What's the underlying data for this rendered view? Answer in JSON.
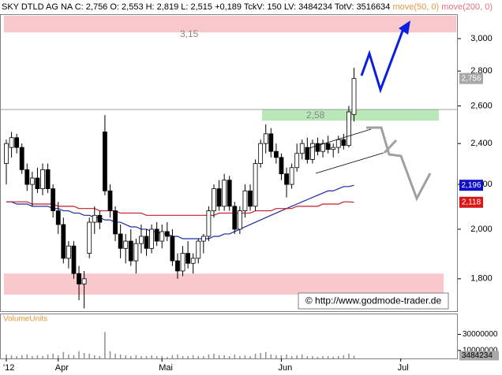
{
  "chart_data": {
    "type": "candlestick",
    "title": "SKY DTLD AG NA C: 2,756 O: 2,553 H: 2,819 L: 2,515 +0,189 TckV: 150 LV: 3484234 TotV: 3516634",
    "log_y": true,
    "xlim": [
      0,
      87
    ],
    "xticks": [
      {
        "value": 0,
        "label": "'12"
      },
      {
        "value": 10,
        "label": "Apr"
      },
      {
        "value": 30,
        "label": "Mai"
      },
      {
        "value": 53,
        "label": "Jun"
      },
      {
        "value": 76,
        "label": "Jul"
      }
    ],
    "ylim": [
      1.68,
      3.16
    ],
    "yticks": [
      {
        "value": 1.8,
        "label": "1,800"
      },
      {
        "value": 2.0,
        "label": "2,000"
      },
      {
        "value": 2.2,
        "label": "2,200"
      },
      {
        "value": 2.4,
        "label": "2,400"
      },
      {
        "value": 2.6,
        "label": "2,600"
      },
      {
        "value": 2.8,
        "label": "2,800"
      },
      {
        "value": 3.0,
        "label": "3,000"
      }
    ],
    "candle_color": "#000000",
    "open": [
      2.3,
      2.38,
      2.43,
      2.38,
      2.27,
      2.2,
      2.23,
      2.18,
      2.27,
      2.18,
      2.08,
      2.02,
      1.88,
      1.93,
      1.82,
      1.78,
      1.9,
      2.03,
      2.06,
      2.46,
      2.17,
      2.08,
      1.98,
      1.92,
      1.95,
      1.87,
      1.94,
      1.97,
      1.92,
      2.0,
      1.95,
      1.99,
      1.97,
      1.87,
      1.83,
      1.9,
      1.86,
      1.88,
      1.95,
      1.97,
      2.08,
      2.18,
      2.1,
      2.22,
      2.1,
      2.0,
      2.08,
      2.17,
      2.1,
      2.3,
      2.4,
      2.45,
      2.36,
      2.33,
      2.25,
      2.2,
      2.28,
      2.35,
      2.38,
      2.32,
      2.4,
      2.36,
      2.4,
      2.37,
      2.38,
      2.42,
      2.39,
      2.553
    ],
    "high": [
      2.42,
      2.46,
      2.45,
      2.4,
      2.3,
      2.26,
      2.28,
      2.3,
      2.3,
      2.2,
      2.12,
      2.05,
      1.95,
      1.95,
      1.85,
      1.83,
      2.05,
      2.1,
      2.08,
      2.55,
      2.2,
      2.1,
      2.02,
      1.98,
      2.0,
      1.96,
      2.02,
      2.0,
      2.02,
      2.03,
      2.02,
      2.03,
      2.0,
      1.9,
      1.93,
      1.95,
      1.9,
      1.96,
      1.98,
      2.1,
      2.2,
      2.22,
      2.25,
      2.24,
      2.12,
      2.1,
      2.2,
      2.2,
      2.32,
      2.42,
      2.5,
      2.48,
      2.4,
      2.35,
      2.28,
      2.3,
      2.4,
      2.42,
      2.43,
      2.42,
      2.43,
      2.42,
      2.44,
      2.4,
      2.44,
      2.45,
      2.6,
      2.819
    ],
    "low": [
      2.2,
      2.33,
      2.35,
      2.25,
      2.17,
      2.1,
      2.16,
      2.15,
      2.16,
      2.05,
      1.98,
      1.86,
      1.84,
      1.8,
      1.72,
      1.69,
      1.88,
      1.98,
      2.0,
      2.15,
      2.05,
      1.95,
      1.88,
      1.86,
      1.85,
      1.82,
      1.9,
      1.89,
      1.9,
      1.93,
      1.92,
      1.95,
      1.85,
      1.8,
      1.81,
      1.84,
      1.82,
      1.86,
      1.9,
      1.95,
      2.05,
      2.08,
      2.08,
      2.08,
      1.98,
      1.98,
      2.05,
      2.08,
      2.08,
      2.28,
      2.35,
      2.33,
      2.3,
      2.22,
      2.14,
      2.18,
      2.26,
      2.32,
      2.3,
      2.3,
      2.34,
      2.33,
      2.35,
      2.33,
      2.35,
      2.37,
      2.38,
      2.515
    ],
    "close": [
      2.4,
      2.43,
      2.38,
      2.27,
      2.2,
      2.23,
      2.18,
      2.27,
      2.18,
      2.08,
      2.02,
      1.88,
      1.93,
      1.82,
      1.78,
      1.8,
      2.03,
      2.06,
      2.03,
      2.17,
      2.08,
      1.98,
      1.92,
      1.95,
      1.87,
      1.94,
      1.97,
      1.92,
      2.0,
      1.95,
      1.99,
      1.97,
      1.87,
      1.83,
      1.9,
      1.86,
      1.88,
      1.95,
      1.97,
      2.08,
      2.18,
      2.1,
      2.22,
      2.1,
      2.0,
      2.08,
      2.17,
      2.1,
      2.3,
      2.4,
      2.45,
      2.36,
      2.33,
      2.25,
      2.2,
      2.28,
      2.35,
      2.4,
      2.32,
      2.4,
      2.36,
      2.4,
      2.37,
      2.38,
      2.42,
      2.39,
      2.567,
      2.756
    ],
    "series": [
      {
        "name": "move(50, 0)",
        "color": "#1c2aa8",
        "label_color": "#e8963c",
        "values": [
          2.12,
          2.12,
          2.11,
          2.11,
          2.11,
          2.1,
          2.1,
          2.1,
          2.1,
          2.09,
          2.09,
          2.08,
          2.08,
          2.07,
          2.07,
          2.06,
          2.06,
          2.05,
          2.05,
          2.04,
          2.04,
          2.03,
          2.03,
          2.02,
          2.01,
          2.01,
          2.0,
          2.0,
          1.99,
          1.99,
          1.98,
          1.98,
          1.97,
          1.97,
          1.96,
          1.96,
          1.96,
          1.96,
          1.96,
          1.96,
          1.97,
          1.97,
          1.98,
          1.98,
          1.99,
          2.0,
          2.01,
          2.02,
          2.03,
          2.04,
          2.05,
          2.06,
          2.07,
          2.08,
          2.09,
          2.1,
          2.11,
          2.12,
          2.13,
          2.14,
          2.15,
          2.16,
          2.17,
          2.17,
          2.18,
          2.19,
          2.19,
          2.196
        ]
      },
      {
        "name": "move(200, 0)",
        "color": "#c41e24",
        "label_color": "#e87080",
        "values": [
          2.12,
          2.12,
          2.12,
          2.12,
          2.12,
          2.11,
          2.11,
          2.11,
          2.11,
          2.11,
          2.1,
          2.1,
          2.1,
          2.1,
          2.09,
          2.09,
          2.09,
          2.09,
          2.08,
          2.08,
          2.08,
          2.08,
          2.07,
          2.07,
          2.07,
          2.07,
          2.07,
          2.06,
          2.06,
          2.06,
          2.06,
          2.06,
          2.06,
          2.06,
          2.06,
          2.06,
          2.06,
          2.06,
          2.06,
          2.06,
          2.06,
          2.07,
          2.07,
          2.07,
          2.07,
          2.07,
          2.07,
          2.07,
          2.08,
          2.08,
          2.08,
          2.08,
          2.09,
          2.09,
          2.09,
          2.09,
          2.1,
          2.1,
          2.1,
          2.1,
          2.1,
          2.11,
          2.11,
          2.11,
          2.11,
          2.12,
          2.12,
          2.118
        ]
      }
    ],
    "price_tags": [
      {
        "value": 2.756,
        "label": "2,756",
        "color": "#a8a8a8"
      },
      {
        "value": 2.196,
        "label": "2,196",
        "color": "#1010c8"
      },
      {
        "value": 2.118,
        "label": "2,118",
        "color": "#d81818"
      }
    ],
    "zones": [
      {
        "low": 3.04,
        "high": 3.15,
        "label": "3,15",
        "color": "#f8c8cc"
      },
      {
        "low": 2.52,
        "high": 2.58,
        "label": "2,58",
        "color": "#b8e8b8"
      },
      {
        "low": 1.74,
        "high": 1.82,
        "color": "#f8c8cc"
      }
    ],
    "level_line": 2.58,
    "watermark": "© http://www.godmode-trader.de",
    "volume": {
      "title": "VolumeUnits",
      "color": "#909090",
      "ylim": [
        0,
        54000000
      ],
      "yticks": [
        10000000,
        30000000
      ],
      "last_tag": 3484234,
      "values": [
        5000000,
        4000000,
        3000000,
        4000000,
        5000000,
        3000000,
        4000000,
        3000000,
        5000000,
        6000000,
        4000000,
        8000000,
        5000000,
        4000000,
        9000000,
        7000000,
        6000000,
        4000000,
        3000000,
        33000000,
        9000000,
        6000000,
        5000000,
        4000000,
        3000000,
        4000000,
        3000000,
        3000000,
        4000000,
        3000000,
        3000000,
        2000000,
        4000000,
        5000000,
        3000000,
        3000000,
        4000000,
        3000000,
        3000000,
        5000000,
        6000000,
        4000000,
        4000000,
        3000000,
        5000000,
        3000000,
        4000000,
        3000000,
        6000000,
        7000000,
        8000000,
        5000000,
        4000000,
        4000000,
        5000000,
        3000000,
        4000000,
        5000000,
        3000000,
        3000000,
        2000000,
        3000000,
        3000000,
        2000000,
        3000000,
        4000000,
        6000000,
        3484234
      ]
    }
  }
}
